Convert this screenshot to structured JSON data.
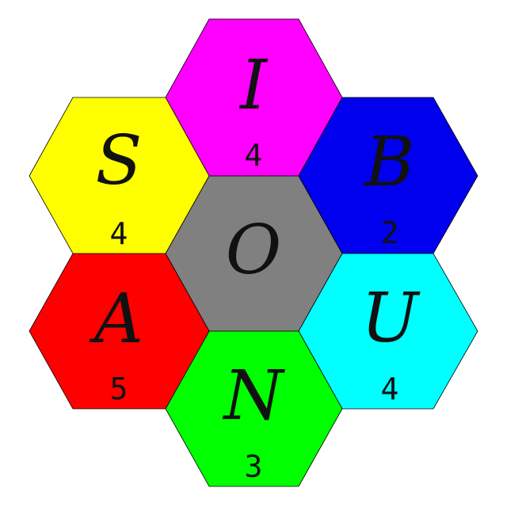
{
  "hexes": [
    {
      "id": "center",
      "letter": "O",
      "count": "",
      "color": "#808080"
    },
    {
      "id": "top",
      "letter": "I",
      "count": "4",
      "color": "#ff00ff"
    },
    {
      "id": "upper-right",
      "letter": "B",
      "count": "2",
      "color": "#0000ee"
    },
    {
      "id": "lower-right",
      "letter": "U",
      "count": "4",
      "color": "#00ffff"
    },
    {
      "id": "bottom",
      "letter": "N",
      "count": "3",
      "color": "#00ff00"
    },
    {
      "id": "lower-left",
      "letter": "A",
      "count": "5",
      "color": "#ff0000"
    },
    {
      "id": "upper-left",
      "letter": "S",
      "count": "4",
      "color": "#ffff00"
    }
  ]
}
